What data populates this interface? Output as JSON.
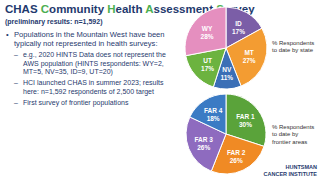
{
  "slide": {
    "title": "CHAS Community Health Assessment Survey",
    "subtitle": "(preliminary results: n=1,592)",
    "bullets": [
      {
        "text": "Populations in the Mountain West have been typically not represented in health surveys:",
        "sub": [
          "e.g., 2020 HINTS Data does not represent the AWS population (HINTS respondents: WY=2, MT=5, NV=35, ID=9, UT=20)",
          "HCI launched CHAS in summer 2023; results here: n=1,592 respondents of 2,500 target",
          "First survey of frontier populations"
        ]
      }
    ],
    "logo": [
      "HUNTSMAN",
      "CANCER INSTITUTE"
    ]
  },
  "chart_data": [
    {
      "type": "pie",
      "title": "% Respondents to date by state",
      "categories": [
        "ID",
        "MT",
        "NV",
        "UT",
        "WY"
      ],
      "values": [
        17,
        27,
        11,
        17,
        28
      ],
      "value_labels": [
        "17%",
        "27%",
        "11%",
        "17%",
        "28%"
      ],
      "colors": [
        "#7b5ea7",
        "#f39c32",
        "#3b6fb6",
        "#6cb33f",
        "#e58fbf"
      ],
      "data_labels": true
    },
    {
      "type": "pie",
      "title": "% Respondents to date by frontier areas",
      "categories": [
        "FAR 1",
        "FAR 2",
        "FAR 3",
        "FAR 4"
      ],
      "values": [
        30,
        26,
        26,
        18
      ],
      "value_labels": [
        "30%",
        "26%",
        "26%",
        "18%"
      ],
      "colors": [
        "#5aa33a",
        "#f08a24",
        "#8e6bbf",
        "#3b7bc4"
      ],
      "data_labels": true
    }
  ]
}
